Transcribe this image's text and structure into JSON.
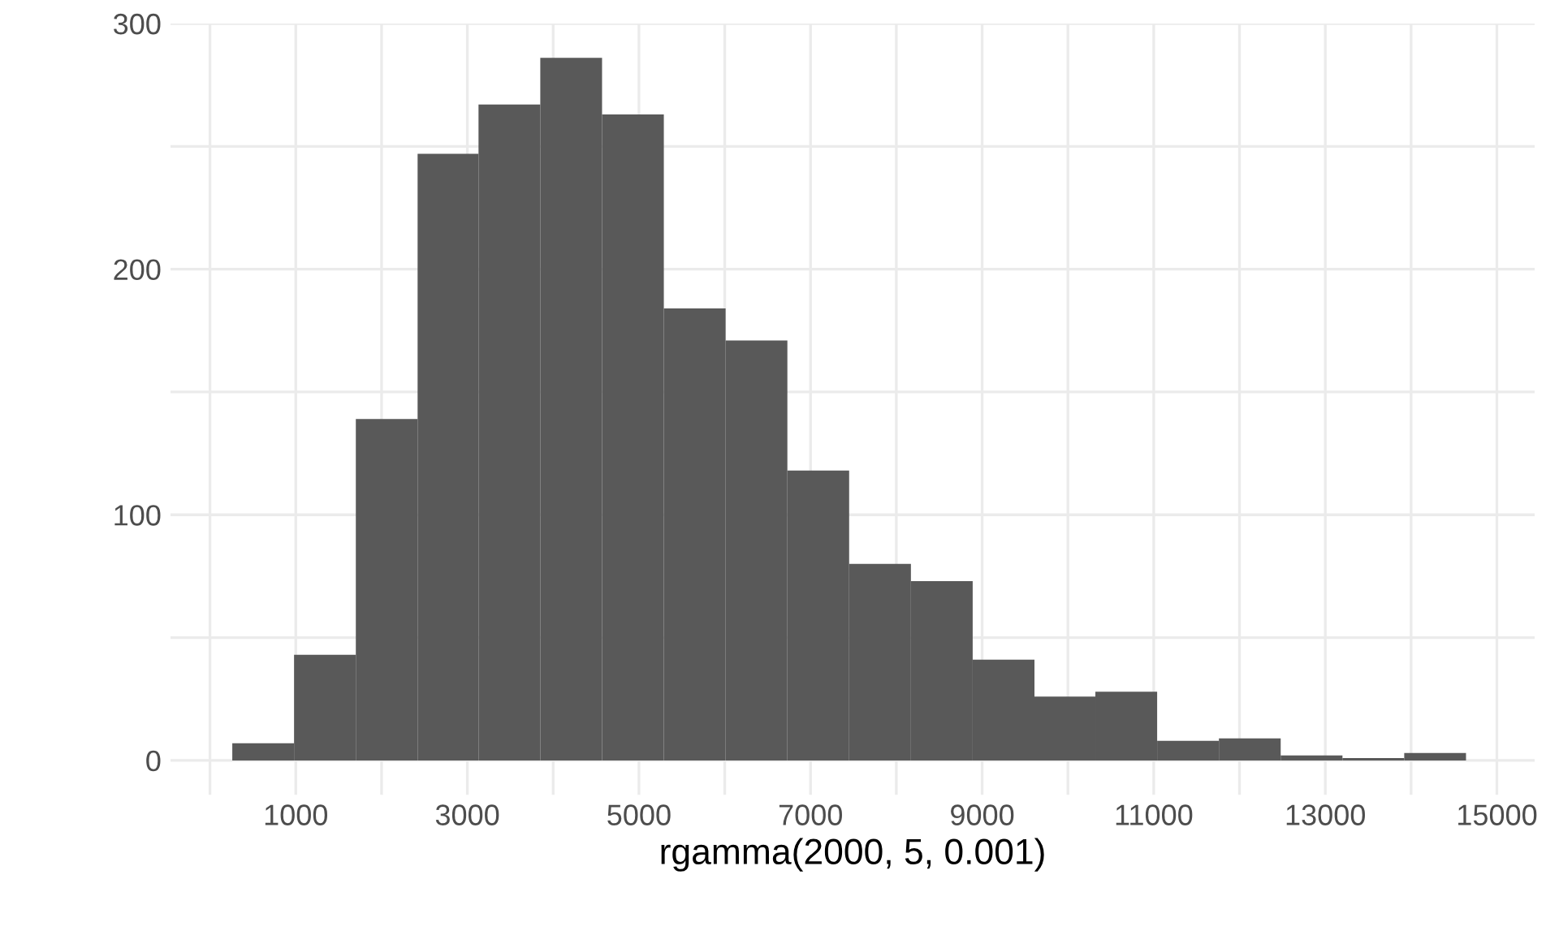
{
  "chart_data": {
    "type": "histogram",
    "xlabel": "rgamma(2000, 5, 0.001)",
    "bins": [
      260,
      980,
      1700,
      2420,
      3130,
      3850,
      4570,
      5290,
      6010,
      6730,
      7450,
      8170,
      8890,
      9610,
      10320,
      11040,
      11760,
      12480,
      13200,
      13920,
      14640
    ],
    "values": [
      7,
      43,
      139,
      247,
      267,
      286,
      263,
      184,
      171,
      118,
      80,
      73,
      41,
      26,
      28,
      8,
      9,
      2,
      1,
      3
    ],
    "color": "#595959",
    "xlim": [
      -460,
      15440
    ],
    "xticks": [
      {
        "value": 0,
        "label": null
      },
      1000,
      {
        "value": 2000,
        "label": null
      },
      3000,
      {
        "value": 4000,
        "label": null
      },
      5000,
      {
        "value": 6000,
        "label": null
      },
      7000,
      {
        "value": 8000,
        "label": null
      },
      9000,
      {
        "value": 10000,
        "label": null
      },
      11000,
      {
        "value": 12000,
        "label": null
      },
      13000,
      {
        "value": 14000,
        "label": null
      },
      15000
    ],
    "ylim": [
      -14,
      300
    ],
    "yticks": [
      0,
      {
        "value": 50,
        "label": null
      },
      100,
      {
        "value": 150,
        "label": null
      },
      200,
      {
        "value": 250,
        "label": null
      },
      300
    ],
    "grid": true
  }
}
